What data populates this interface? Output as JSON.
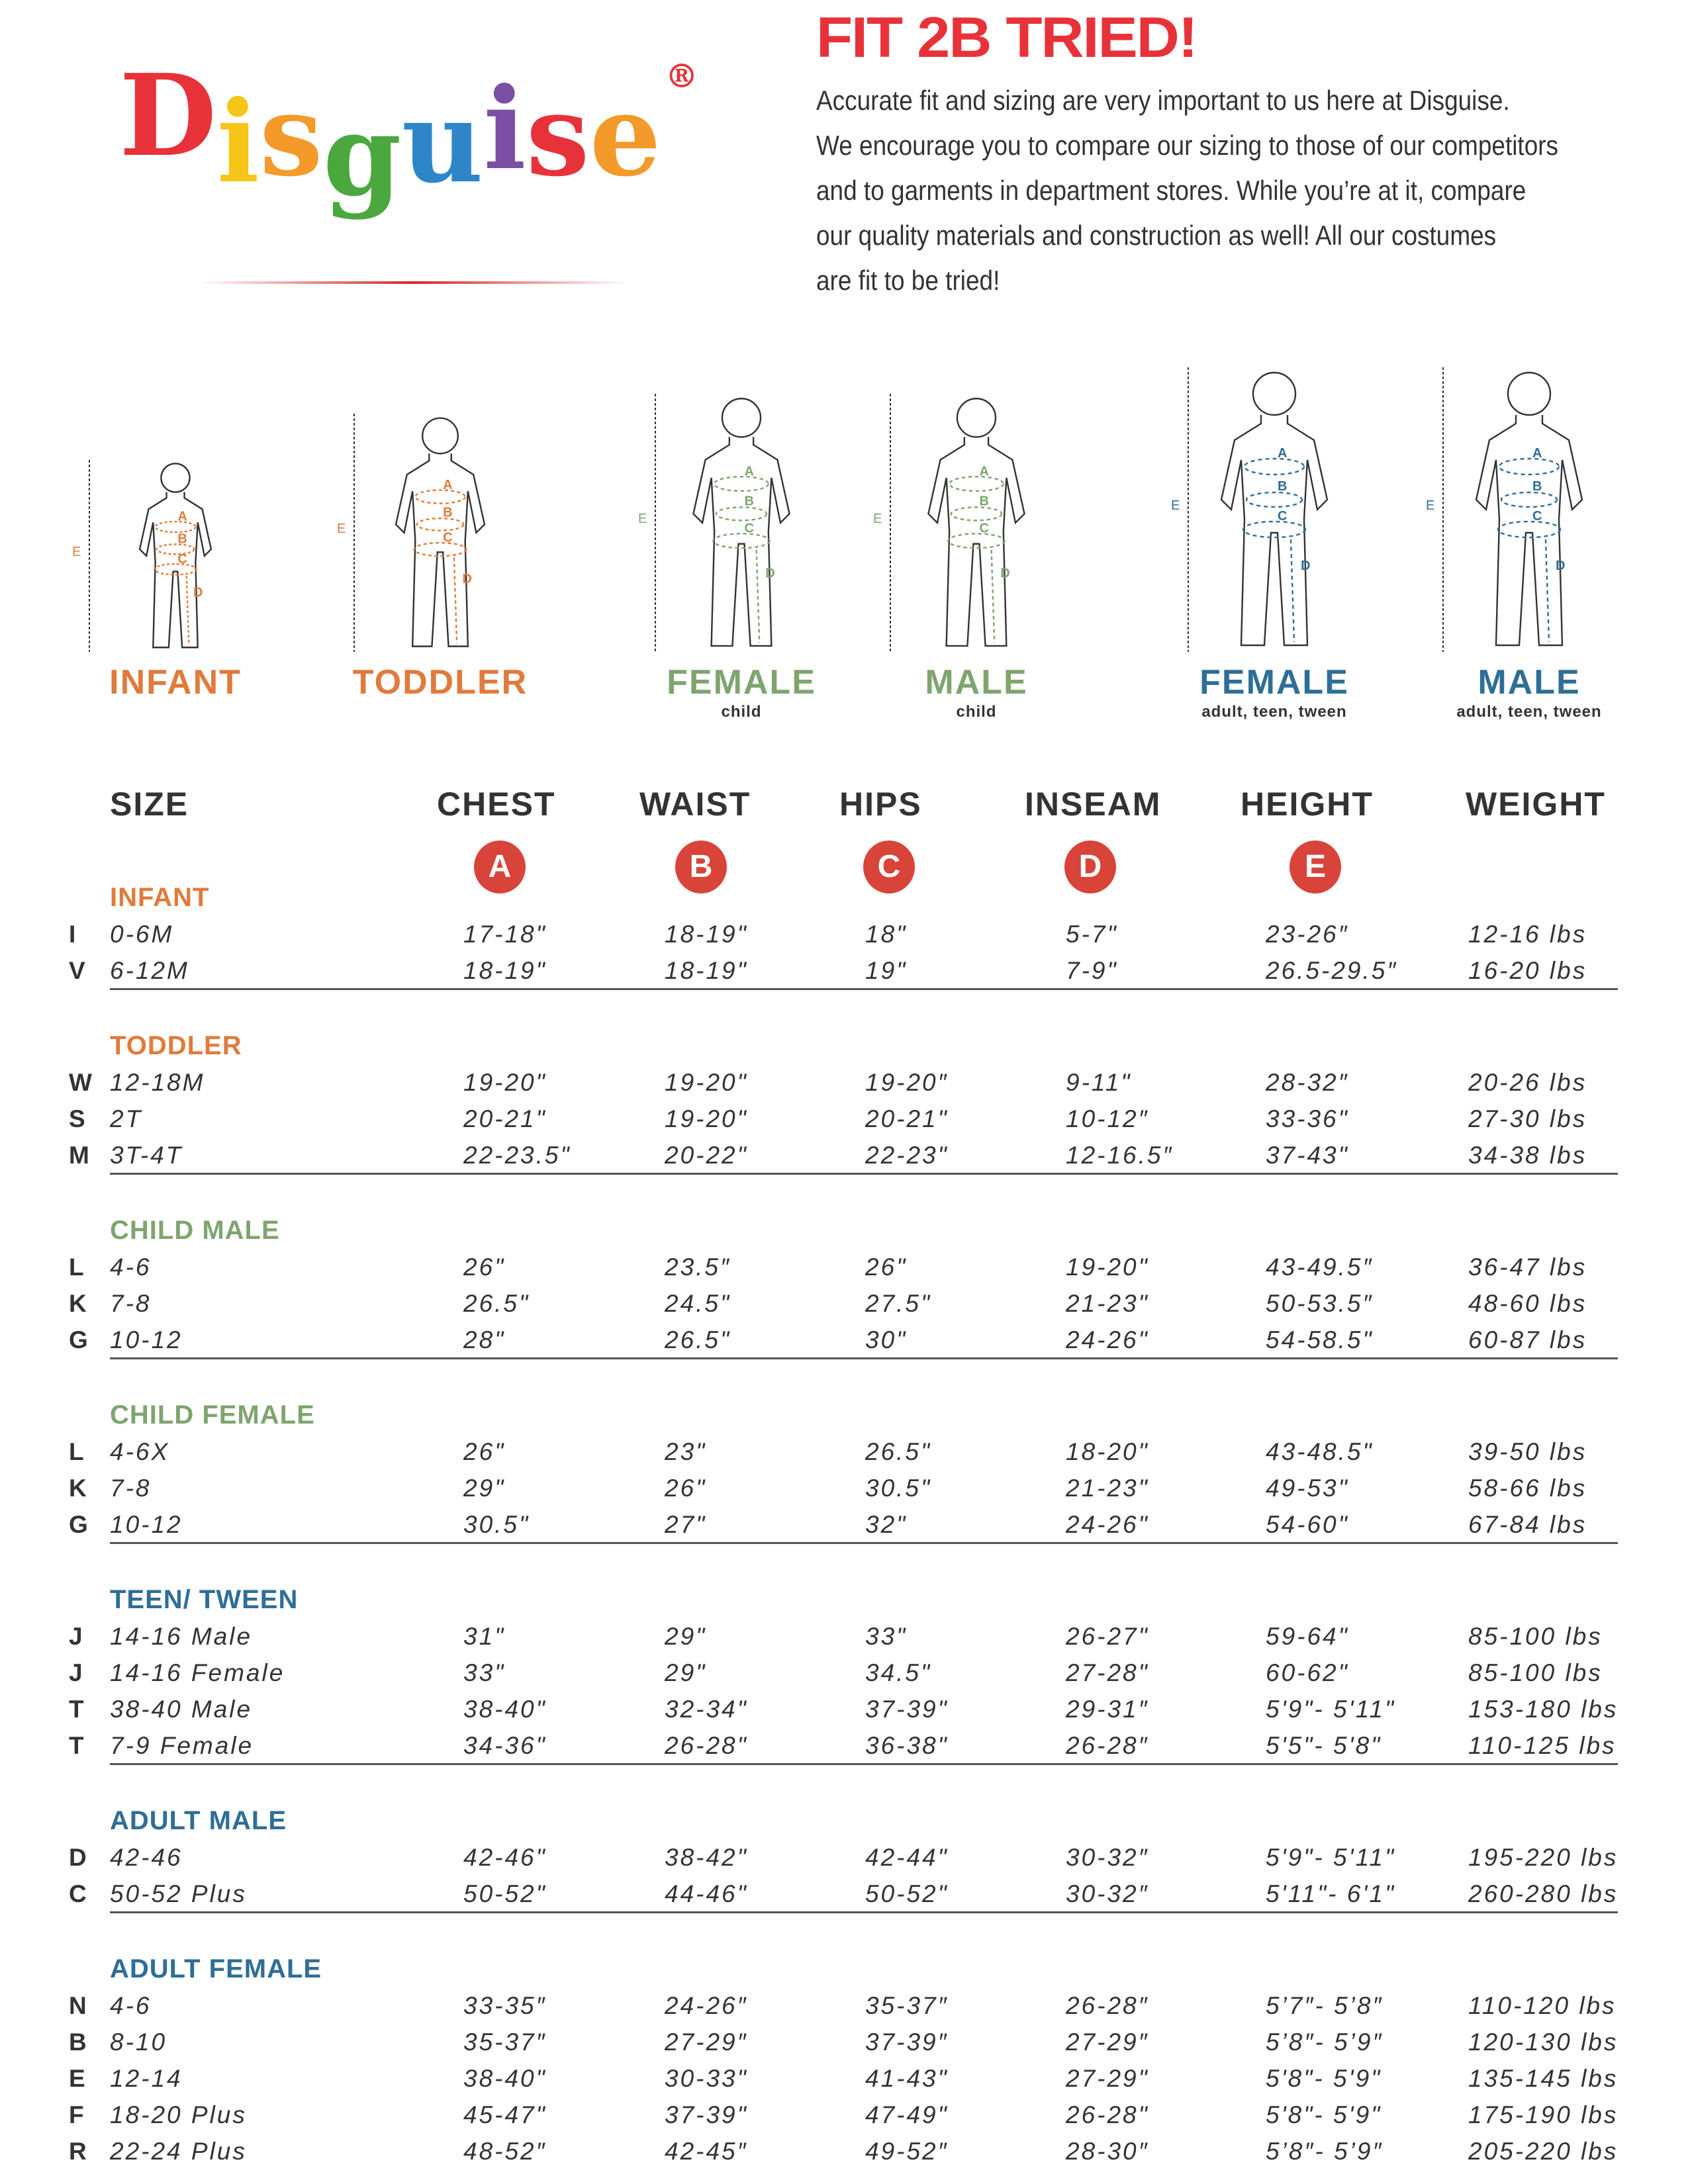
{
  "brand": {
    "logo_text": "Disguise",
    "registered": "®"
  },
  "header": {
    "title": "FIT 2B TRIED!",
    "intro_lines": [
      "Accurate fit and sizing are very important to us here at Disguise.",
      "We encourage you to compare our sizing to those of our competitors",
      "and to garments in department stores. While you’re at it, compare",
      "our quality materials and construction as well! All our costumes",
      "are fit to be tried!"
    ]
  },
  "figures": [
    {
      "label": "INFANT",
      "sub": "",
      "color": "#e07b3c"
    },
    {
      "label": "TODDLER",
      "sub": "",
      "color": "#e07b3c"
    },
    {
      "label": "FEMALE",
      "sub": "child",
      "color": "#7fa56e"
    },
    {
      "label": "MALE",
      "sub": "child",
      "color": "#7fa56e"
    },
    {
      "label": "FEMALE",
      "sub": "adult, teen, tween",
      "color": "#2f6e96"
    },
    {
      "label": "MALE",
      "sub": "adult, teen, tween",
      "color": "#2f6e96"
    }
  ],
  "figure_markers": [
    "A",
    "B",
    "C",
    "D",
    "E"
  ],
  "columns": [
    "SIZE",
    "CHEST",
    "WAIST",
    "HIPS",
    "INSEAM",
    "HEIGHT",
    "WEIGHT"
  ],
  "column_keys": [
    "A",
    "B",
    "C",
    "D",
    "E"
  ],
  "accent_color": "#d8443a",
  "sections": [
    {
      "title": "INFANT",
      "color": "#e07b3c",
      "rows": [
        [
          "I",
          "0-6M",
          "17-18\"",
          "18-19\"",
          "18\"",
          "5-7\"",
          "23-26″",
          "12-16 lbs"
        ],
        [
          "V",
          "6-12M",
          "18-19\"",
          "18-19\"",
          "19\"",
          "7-9\"",
          "26.5-29.5″",
          "16-20 lbs"
        ]
      ]
    },
    {
      "title": "TODDLER",
      "color": "#e07b3c",
      "rows": [
        [
          "W",
          "12-18M",
          "19-20\"",
          "19-20\"",
          "19-20″",
          "9-11\"",
          "28-32″",
          "20-26 lbs"
        ],
        [
          "S",
          "2T",
          "20-21\"",
          "19-20\"",
          "20-21\"",
          "10-12″",
          "33-36\"",
          "27-30 lbs"
        ],
        [
          "M",
          "3T-4T",
          "22-23.5\"",
          "20-22\"",
          "22-23\"",
          "12-16.5″",
          "37-43\"",
          "34-38 lbs"
        ]
      ]
    },
    {
      "title": "CHILD MALE",
      "color": "#7fa56e",
      "rows": [
        [
          "L",
          "4-6",
          "26\"",
          "23.5″",
          "26\"",
          "19-20\"",
          "43-49.5″",
          "36-47 lbs"
        ],
        [
          "K",
          "7-8",
          "26.5\"",
          "24.5\"",
          "27.5\"",
          "21-23\"",
          "50-53.5″",
          "48-60 lbs"
        ],
        [
          "G",
          "10-12",
          "28\"",
          "26.5\"",
          "30\"",
          "24-26\"",
          "54-58.5\"",
          "60-87 lbs"
        ]
      ]
    },
    {
      "title": "CHILD FEMALE",
      "color": "#7fa56e",
      "rows": [
        [
          "L",
          "4-6X",
          "26\"",
          "23\"",
          "26.5\"",
          "18-20\"",
          "43-48.5\"",
          "39-50 lbs"
        ],
        [
          "K",
          "7-8",
          "29\"",
          "26\"",
          "30.5\"",
          "21-23\"",
          "49-53\"",
          "58-66 lbs"
        ],
        [
          "G",
          "10-12",
          "30.5\"",
          "27\"",
          "32\"",
          "24-26\"",
          "54-60\"",
          "67-84 lbs"
        ]
      ]
    },
    {
      "title": "TEEN/ TWEEN",
      "color": "#2f6e96",
      "rows": [
        [
          "J",
          "14-16 Male",
          "31\"",
          "29\"",
          "33\"",
          "26-27\"",
          "59-64\"",
          "85-100 lbs"
        ],
        [
          "J",
          "14-16 Female",
          "33\"",
          "29\"",
          "34.5\"",
          "27-28\"",
          "60-62\"",
          "85-100 lbs"
        ],
        [
          "T",
          "38-40 Male",
          "38-40\"",
          "32-34\"",
          "37-39\"",
          "29-31″",
          "5'9\"- 5'11\"",
          "153-180 lbs"
        ],
        [
          "T",
          "7-9 Female",
          "34-36\"",
          "26-28\"",
          "36-38\"",
          "26-28″",
          "5'5\"- 5'8\"",
          "110-125 lbs"
        ]
      ]
    },
    {
      "title": "ADULT MALE",
      "color": "#2f6e96",
      "rows": [
        [
          "D",
          "42-46",
          "42-46\"",
          "38-42\"",
          "42-44\"",
          "30-32″",
          "5'9\"- 5'11\"",
          "195-220 lbs"
        ],
        [
          "C",
          "50-52 Plus",
          "50-52\"",
          "44-46\"",
          "50-52\"",
          "30-32″",
          "5'11\"- 6'1\"",
          "260-280 lbs"
        ]
      ]
    },
    {
      "title": "ADULT FEMALE",
      "color": "#2f6e96",
      "rows": [
        [
          "N",
          "4-6",
          "33-35″",
          "24-26″",
          "35-37″",
          "26-28″",
          "5’7″- 5’8″",
          "110-120 lbs"
        ],
        [
          "B",
          "8-10",
          "35-37″",
          "27-29″",
          "37-39″",
          "27-29″",
          "5’8″- 5’9″",
          "120-130 lbs"
        ],
        [
          "E",
          "12-14",
          "38-40\"",
          "30-33\"",
          "41-43\"",
          "27-29\"",
          "5'8\"- 5'9\"",
          "135-145 lbs"
        ],
        [
          "F",
          "18-20 Plus",
          "45-47\"",
          "37-39\"",
          "47-49\"",
          "26-28\"",
          "5'8\"- 5'9\"",
          "175-190 lbs"
        ],
        [
          "R",
          "22-24 Plus",
          "48-52″",
          "42-45″",
          "49-52″",
          "28-30″",
          "5’8″- 5’9″",
          "205-220 lbs"
        ]
      ]
    }
  ]
}
